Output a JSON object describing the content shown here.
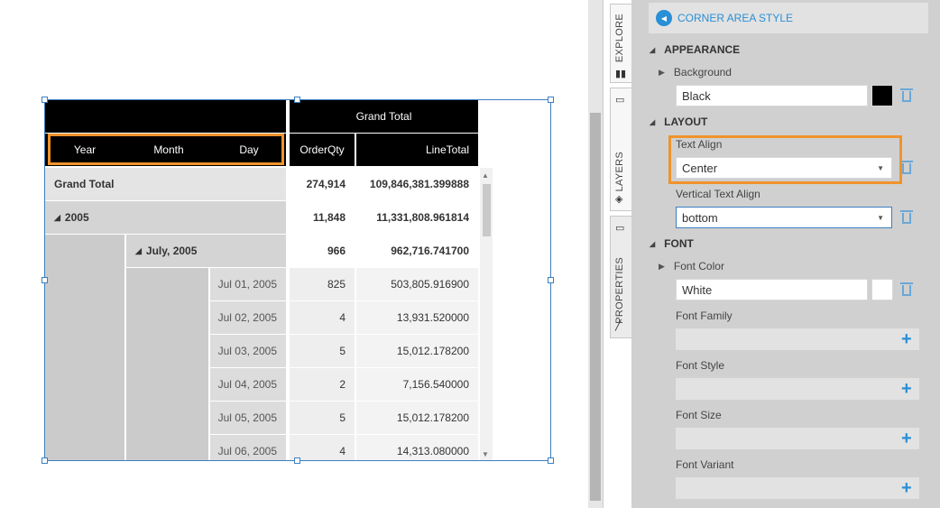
{
  "pivot": {
    "column_header": "Grand Total",
    "corner": {
      "year": "Year",
      "month": "Month",
      "day": "Day"
    },
    "measures": {
      "order_qty": "OrderQty",
      "line_total": "LineTotal"
    },
    "grand_total": {
      "label": "Grand Total",
      "order_qty": "274,914",
      "line_total": "109,846,381.399888"
    },
    "year_row": {
      "label": "2005",
      "order_qty": "11,848",
      "line_total": "11,331,808.961814"
    },
    "month_row": {
      "label": "July, 2005",
      "order_qty": "966",
      "line_total": "962,716.741700"
    },
    "day_rows": [
      {
        "date": "Jul 01, 2005",
        "order_qty": "825",
        "line_total": "503,805.916900"
      },
      {
        "date": "Jul 02, 2005",
        "order_qty": "4",
        "line_total": "13,931.520000"
      },
      {
        "date": "Jul 03, 2005",
        "order_qty": "5",
        "line_total": "15,012.178200"
      },
      {
        "date": "Jul 04, 2005",
        "order_qty": "2",
        "line_total": "7,156.540000"
      },
      {
        "date": "Jul 05, 2005",
        "order_qty": "5",
        "line_total": "15,012.178200"
      },
      {
        "date": "Jul 06, 2005",
        "order_qty": "4",
        "line_total": "14,313.080000"
      }
    ]
  },
  "tabs": {
    "explore": "EXPLORE",
    "layers": "LAYERS",
    "properties": "PROPERTIES"
  },
  "panel": {
    "title": "CORNER AREA STYLE",
    "appearance": {
      "section": "APPEARANCE",
      "background_label": "Background",
      "background_value": "Black",
      "background_color": "#000000"
    },
    "layout": {
      "section": "LAYOUT",
      "text_align_label": "Text Align",
      "text_align_value": "Center",
      "vertical_align_label": "Vertical Text Align",
      "vertical_align_value": "bottom"
    },
    "font": {
      "section": "FONT",
      "color_label": "Font Color",
      "color_value": "White",
      "color_swatch": "#ffffff",
      "family_label": "Font Family",
      "style_label": "Font Style",
      "size_label": "Font Size",
      "variant_label": "Font Variant"
    }
  },
  "colors": {
    "accent": "#2a8fd6",
    "highlight": "#f0932b",
    "selection": "#3d7fc1"
  }
}
